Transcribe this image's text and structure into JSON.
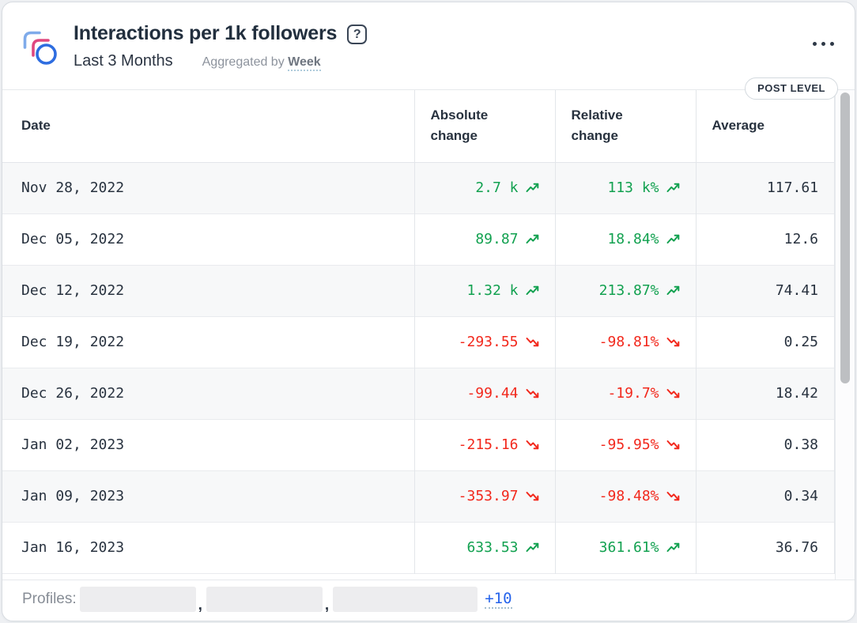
{
  "header": {
    "title": "Interactions per 1k followers",
    "date_range": "Last 3 Months",
    "aggregated_prefix": "Aggregated by",
    "aggregated_value": "Week",
    "help_glyph": "?",
    "badge": "POST LEVEL"
  },
  "table": {
    "columns": [
      "Date",
      "Absolute change",
      "Relative change",
      "Average"
    ],
    "rows": [
      {
        "date": "Nov 28, 2022",
        "absolute": "2.7 k",
        "absolute_trend": "up",
        "relative": "113 k%",
        "relative_trend": "up",
        "average": "117.61"
      },
      {
        "date": "Dec 05, 2022",
        "absolute": "89.87",
        "absolute_trend": "up",
        "relative": "18.84%",
        "relative_trend": "up",
        "average": "12.6"
      },
      {
        "date": "Dec 12, 2022",
        "absolute": "1.32 k",
        "absolute_trend": "up",
        "relative": "213.87%",
        "relative_trend": "up",
        "average": "74.41"
      },
      {
        "date": "Dec 19, 2022",
        "absolute": "-293.55",
        "absolute_trend": "down",
        "relative": "-98.81%",
        "relative_trend": "down",
        "average": "0.25"
      },
      {
        "date": "Dec 26, 2022",
        "absolute": "-99.44",
        "absolute_trend": "down",
        "relative": "-19.7%",
        "relative_trend": "down",
        "average": "18.42"
      },
      {
        "date": "Jan 02, 2023",
        "absolute": "-215.16",
        "absolute_trend": "down",
        "relative": "-95.95%",
        "relative_trend": "down",
        "average": "0.38"
      },
      {
        "date": "Jan 09, 2023",
        "absolute": "-353.97",
        "absolute_trend": "down",
        "relative": "-98.48%",
        "relative_trend": "down",
        "average": "0.34"
      },
      {
        "date": "Jan 16, 2023",
        "absolute": "633.53",
        "absolute_trend": "up",
        "relative": "361.61%",
        "relative_trend": "up",
        "average": "36.76"
      }
    ]
  },
  "chart_data": {
    "type": "table",
    "title": "Interactions per 1k followers",
    "subtitle": "Last 3 Months, Aggregated by Week",
    "categories": [
      "Nov 28, 2022",
      "Dec 05, 2022",
      "Dec 12, 2022",
      "Dec 19, 2022",
      "Dec 26, 2022",
      "Jan 02, 2023",
      "Jan 09, 2023",
      "Jan 16, 2023"
    ],
    "series": [
      {
        "name": "Absolute change",
        "values": [
          2700,
          89.87,
          1320,
          -293.55,
          -99.44,
          -215.16,
          -353.97,
          633.53
        ]
      },
      {
        "name": "Relative change (%)",
        "values": [
          113000,
          18.84,
          213.87,
          -98.81,
          -19.7,
          -95.95,
          -98.48,
          361.61
        ]
      },
      {
        "name": "Average",
        "values": [
          117.61,
          12.6,
          74.41,
          0.25,
          18.42,
          0.38,
          0.34,
          36.76
        ]
      }
    ]
  },
  "footer": {
    "label": "Profiles:",
    "separator": ",",
    "redacted_profiles": [
      "",
      "",
      ""
    ],
    "more": "+10"
  },
  "colors": {
    "positive": "#12a150",
    "negative": "#f2281c",
    "link": "#2563eb"
  }
}
